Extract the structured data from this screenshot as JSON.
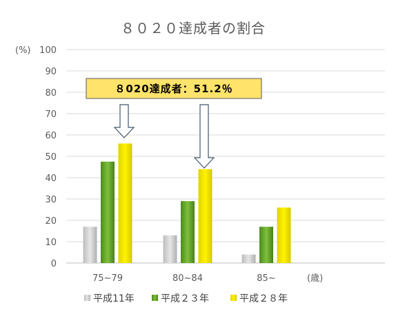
{
  "chart_data": {
    "type": "bar",
    "title": "８０２０達成者の割合",
    "ylabel": "(%)",
    "xunit": "(歳)",
    "ylim": [
      0,
      100
    ],
    "yticks": [
      0,
      10,
      20,
      30,
      40,
      50,
      60,
      70,
      80,
      90,
      100
    ],
    "categories": [
      "75~79",
      "80~84",
      "85~"
    ],
    "series": [
      {
        "name": "平成11年",
        "values": [
          17,
          13,
          4
        ],
        "color": "#c8c8c8"
      },
      {
        "name": "平成２３年",
        "values": [
          47.5,
          29,
          17
        ],
        "color": "#6aaa2c"
      },
      {
        "name": "平成２８年",
        "values": [
          56,
          44,
          26
        ],
        "color": "#f2e600"
      }
    ],
    "grid": true,
    "legend": "bottom",
    "annotation": {
      "text": "８020達成者：51.2％",
      "color": "#ffe36a"
    }
  }
}
